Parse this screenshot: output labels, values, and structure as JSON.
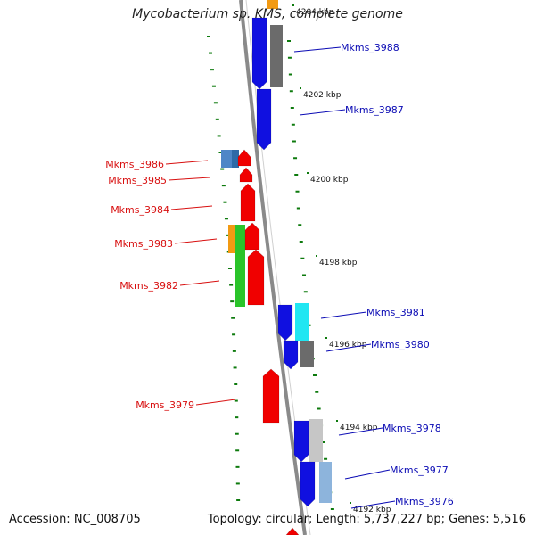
{
  "title": "Mycobacterium sp. KMS, complete genome",
  "footer": {
    "accession": "Accession: NC_008705",
    "summary": "Topology: circular; Length: 5,737,227 bp; Genes: 5,516"
  },
  "colors": {
    "forward_gene": "#1010e0",
    "reverse_gene": "#f00000",
    "forward_label": "#0a0ab4",
    "reverse_label": "#d81010",
    "backbone": "#8a8a8a",
    "tick": "#0d7a0d"
  },
  "scale_labels": [
    "4204 kbp",
    "4202 kbp",
    "4200 kbp",
    "4198 kbp",
    "4196 kbp",
    "4194 kbp",
    "4192 kbp"
  ],
  "forward_genes": [
    "Mkms_3988",
    "Mkms_3987",
    "Mkms_3981",
    "Mkms_3980",
    "Mkms_3978",
    "Mkms_3977",
    "Mkms_3976"
  ],
  "reverse_genes": [
    "Mkms_3986",
    "Mkms_3985",
    "Mkms_3984",
    "Mkms_3983",
    "Mkms_3982",
    "Mkms_3979"
  ]
}
